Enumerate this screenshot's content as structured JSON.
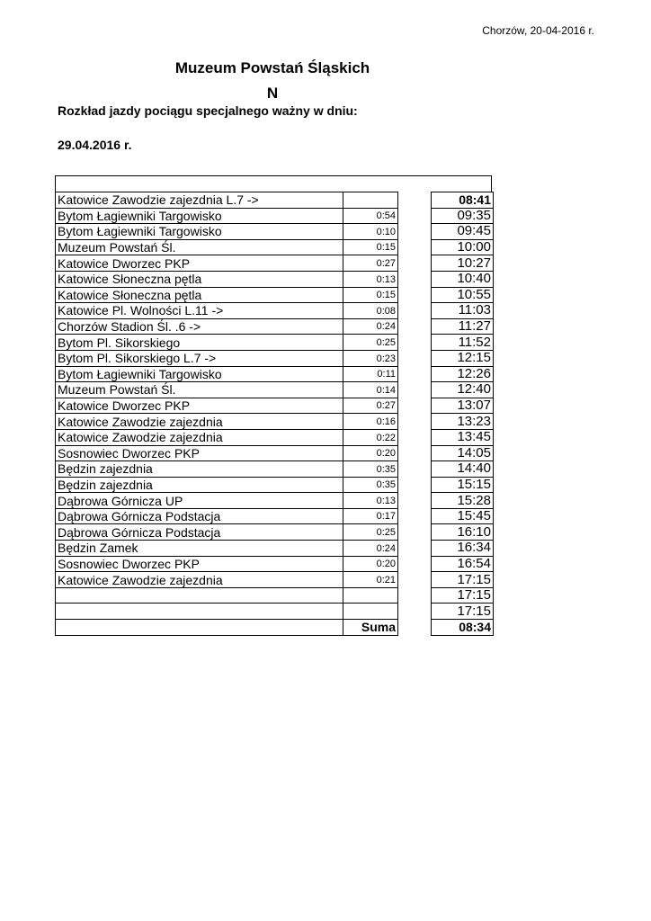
{
  "header": {
    "place_date": "Chorzów, 20-04-2016 r.",
    "title": "Muzeum Powstań Śląskich",
    "line_letter": "N",
    "subtitle": "Rozkład jazdy pociągu specjalnego ważny w dniu:",
    "valid_date": "29.04.2016 r."
  },
  "schedule": {
    "rows": [
      {
        "stop": "Katowice Zawodzie zajezdnia L.7 ->",
        "duration": "",
        "time": "08:41"
      },
      {
        "stop": "Bytom Łagiewniki Targowisko",
        "duration": "0:54",
        "time": "09:35"
      },
      {
        "stop": "Bytom Łagiewniki Targowisko",
        "duration": "0:10",
        "time": "09:45"
      },
      {
        "stop": "Muzeum Powstań Śl.",
        "duration": "0:15",
        "time": "10:00"
      },
      {
        "stop": "Katowice Dworzec PKP",
        "duration": "0:27",
        "time": "10:27"
      },
      {
        "stop": "Katowice Słoneczna pętla",
        "duration": "0:13",
        "time": "10:40"
      },
      {
        "stop": "Katowice Słoneczna pętla",
        "duration": "0:15",
        "time": "10:55"
      },
      {
        "stop": "Katowice Pl. Wolności L.11 ->",
        "duration": "0:08",
        "time": "11:03"
      },
      {
        "stop": "Chorzów Stadion Śl. .6 ->",
        "duration": "0:24",
        "time": "11:27"
      },
      {
        "stop": "Bytom Pl. Sikorskiego",
        "duration": "0:25",
        "time": "11:52"
      },
      {
        "stop": "Bytom Pl. Sikorskiego L.7 ->",
        "duration": "0:23",
        "time": "12:15"
      },
      {
        "stop": "Bytom Łagiewniki Targowisko",
        "duration": "0:11",
        "time": "12:26"
      },
      {
        "stop": "Muzeum Powstań Śl.",
        "duration": "0:14",
        "time": "12:40"
      },
      {
        "stop": "Katowice Dworzec PKP",
        "duration": "0:27",
        "time": "13:07"
      },
      {
        "stop": "Katowice Zawodzie zajezdnia",
        "duration": "0:16",
        "time": "13:23"
      },
      {
        "stop": "Katowice Zawodzie zajezdnia",
        "duration": "0:22",
        "time": "13:45"
      },
      {
        "stop": "Sosnowiec Dworzec PKP",
        "duration": "0:20",
        "time": "14:05"
      },
      {
        "stop": "Będzin zajezdnia",
        "duration": "0:35",
        "time": "14:40"
      },
      {
        "stop": "Będzin zajezdnia",
        "duration": "0:35",
        "time": "15:15"
      },
      {
        "stop": "Dąbrowa Górnicza UP",
        "duration": "0:13",
        "time": "15:28"
      },
      {
        "stop": "Dąbrowa Górnicza Podstacja",
        "duration": "0:17",
        "time": "15:45"
      },
      {
        "stop": "Dąbrowa Górnicza Podstacja",
        "duration": "0:25",
        "time": "16:10"
      },
      {
        "stop": "Będzin Zamek",
        "duration": "0:24",
        "time": "16:34"
      },
      {
        "stop": "Sosnowiec Dworzec PKP",
        "duration": "0:20",
        "time": "16:54"
      },
      {
        "stop": "Katowice Zawodzie zajezdnia",
        "duration": "0:21",
        "time": "17:15"
      },
      {
        "stop": "",
        "duration": "",
        "time": "17:15"
      },
      {
        "stop": "",
        "duration": "",
        "time": "17:15"
      }
    ],
    "sum_label": "Suma",
    "sum_value": "08:34"
  }
}
